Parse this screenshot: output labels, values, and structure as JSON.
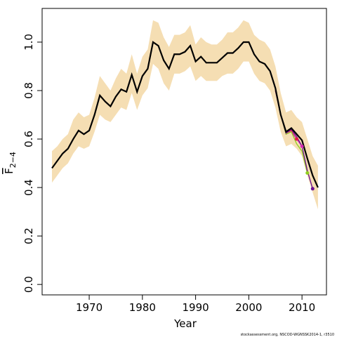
{
  "chart_data": {
    "type": "line",
    "x_label": "Year",
    "y_label": {
      "main": "F",
      "subscript": "2−4"
    },
    "footnote": "stockassessment.org, NSCOD-WGNSSK2014-1, r3510",
    "x": [
      1963,
      1964,
      1965,
      1966,
      1967,
      1968,
      1969,
      1970,
      1971,
      1972,
      1973,
      1974,
      1975,
      1976,
      1977,
      1978,
      1979,
      1980,
      1981,
      1982,
      1983,
      1984,
      1985,
      1986,
      1987,
      1988,
      1989,
      1990,
      1991,
      1992,
      1993,
      1994,
      1995,
      1996,
      1997,
      1998,
      1999,
      2000,
      2001,
      2002,
      2003,
      2004,
      2005,
      2006,
      2007,
      2008,
      2009,
      2010,
      2011,
      2012,
      2013
    ],
    "series": [
      {
        "color": "#000000",
        "values": [
          0.48,
          0.51,
          0.54,
          0.56,
          0.6,
          0.635,
          0.62,
          0.635,
          0.7,
          0.78,
          0.755,
          0.735,
          0.775,
          0.805,
          0.795,
          0.865,
          0.795,
          0.86,
          0.89,
          1.0,
          0.985,
          0.925,
          0.89,
          0.95,
          0.95,
          0.96,
          0.985,
          0.92,
          0.94,
          0.915,
          0.915,
          0.915,
          0.935,
          0.955,
          0.955,
          0.975,
          1.0,
          1.0,
          0.95,
          0.92,
          0.91,
          0.88,
          0.81,
          0.7,
          0.63,
          0.645,
          0.62,
          0.595,
          0.52,
          0.45,
          0.4
        ]
      }
    ],
    "band": {
      "color": "#f5deb3",
      "upper": [
        0.55,
        0.57,
        0.6,
        0.62,
        0.68,
        0.71,
        0.69,
        0.7,
        0.77,
        0.86,
        0.83,
        0.8,
        0.85,
        0.89,
        0.87,
        0.95,
        0.87,
        0.94,
        0.97,
        1.09,
        1.08,
        1.02,
        0.98,
        1.03,
        1.03,
        1.04,
        1.07,
        0.99,
        1.02,
        1.0,
        0.99,
        0.99,
        1.01,
        1.04,
        1.04,
        1.06,
        1.09,
        1.08,
        1.03,
        1.01,
        1.0,
        0.97,
        0.9,
        0.79,
        0.71,
        0.72,
        0.69,
        0.67,
        0.6,
        0.53,
        0.49
      ],
      "lower": [
        0.42,
        0.45,
        0.48,
        0.5,
        0.54,
        0.57,
        0.56,
        0.57,
        0.63,
        0.7,
        0.68,
        0.67,
        0.7,
        0.73,
        0.72,
        0.79,
        0.72,
        0.78,
        0.81,
        0.91,
        0.89,
        0.83,
        0.8,
        0.87,
        0.87,
        0.88,
        0.9,
        0.84,
        0.86,
        0.84,
        0.84,
        0.84,
        0.86,
        0.87,
        0.87,
        0.89,
        0.92,
        0.92,
        0.87,
        0.84,
        0.83,
        0.8,
        0.73,
        0.63,
        0.57,
        0.58,
        0.56,
        0.53,
        0.45,
        0.38,
        0.31
      ]
    },
    "retro": [
      {
        "color": "#e8174a",
        "x": [
          2005,
          2006,
          2007,
          2008,
          2009
        ],
        "values": [
          0.8,
          0.7,
          0.625,
          0.635,
          0.6
        ]
      },
      {
        "color": "#d62bb0",
        "x": [
          2005,
          2006,
          2007,
          2008,
          2009,
          2010
        ],
        "values": [
          0.8,
          0.7,
          0.62,
          0.63,
          0.6,
          0.57
        ]
      },
      {
        "color": "#8fcf1f",
        "x": [
          2005,
          2006,
          2007,
          2008,
          2009,
          2010,
          2011
        ],
        "values": [
          0.8,
          0.7,
          0.62,
          0.63,
          0.58,
          0.55,
          0.46
        ]
      },
      {
        "color": "#6a0d91",
        "x": [
          2005,
          2006,
          2007,
          2008,
          2009,
          2010,
          2011,
          2012
        ],
        "values": [
          0.8,
          0.7,
          0.625,
          0.64,
          0.61,
          0.57,
          0.47,
          0.395
        ]
      }
    ],
    "xlim": [
      1961.15,
      2014.6
    ],
    "ylim": [
      -0.043,
      1.139
    ],
    "xticks": [
      1970,
      1980,
      1990,
      2000,
      2010
    ],
    "yticks": [
      {
        "value": 0,
        "label": "0.0"
      },
      {
        "value": 0.2,
        "label": "0.2"
      },
      {
        "value": 0.4,
        "label": "0.4"
      },
      {
        "value": 0.6,
        "label": "0.6"
      },
      {
        "value": 0.8,
        "label": "0.8"
      },
      {
        "value": 1.0,
        "label": "1.0"
      }
    ]
  }
}
